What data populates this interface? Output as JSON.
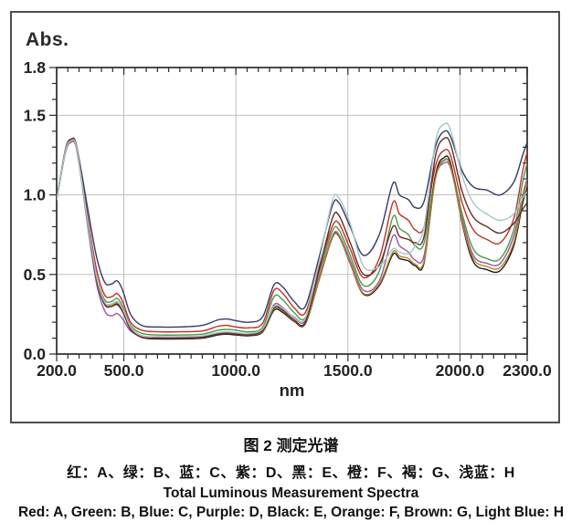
{
  "figure": {
    "y_axis_title": "Abs.",
    "x_axis_label": "nm"
  },
  "caption": {
    "line1": "图 2  测定光谱",
    "line2": "红：A、绿：B、蓝：C、紫：D、黑：E、橙：F、褐：G、浅蓝：H",
    "line3": "Total Luminous Measurement Spectra",
    "line4": "Red: A, Green: B, Blue: C, Purple: D, Black: E, Orange: F, Brown: G, Light Blue: H"
  },
  "chart_data": {
    "type": "line",
    "title": "图 2 测定光谱 (Total Luminous Measurement Spectra)",
    "xlabel": "nm",
    "ylabel": "Abs.",
    "xlim": [
      200,
      2300
    ],
    "ylim": [
      0,
      1.8
    ],
    "grid": true,
    "grid_x": [
      500,
      1000,
      1500,
      2000
    ],
    "grid_y": [
      0.5,
      1.0,
      1.5
    ],
    "x_minor_step": 50,
    "y_minor_step": 0.1,
    "xticks": [
      {
        "v": 200,
        "label": "200.0"
      },
      {
        "v": 500,
        "label": "500.0"
      },
      {
        "v": 1000,
        "label": "1000.0"
      },
      {
        "v": 1500,
        "label": "1500.0"
      },
      {
        "v": 2000,
        "label": "2000.0"
      },
      {
        "v": 2300,
        "label": "2300.0"
      }
    ],
    "yticks": [
      {
        "v": 0.0,
        "label": "0.0"
      },
      {
        "v": 0.5,
        "label": "0.5"
      },
      {
        "v": 1.0,
        "label": "1.0"
      },
      {
        "v": 1.5,
        "label": "1.5"
      },
      {
        "v": 1.8,
        "label": "1.8"
      }
    ],
    "x": [
      200,
      240,
      265,
      285,
      310,
      345,
      380,
      415,
      445,
      470,
      495,
      530,
      580,
      650,
      750,
      850,
      920,
      960,
      1000,
      1060,
      1120,
      1170,
      1210,
      1260,
      1310,
      1370,
      1430,
      1460,
      1510,
      1570,
      1640,
      1700,
      1730,
      1770,
      1800,
      1840,
      1890,
      1930,
      1960,
      2010,
      2060,
      2120,
      2180,
      2240,
      2280,
      2300
    ],
    "series": [
      {
        "name": "A",
        "color_name": "red",
        "color": "#c03028",
        "values": [
          0.97,
          1.29,
          1.35,
          1.33,
          1.13,
          0.8,
          0.52,
          0.37,
          0.36,
          0.38,
          0.33,
          0.2,
          0.15,
          0.14,
          0.14,
          0.145,
          0.175,
          0.18,
          0.17,
          0.165,
          0.195,
          0.4,
          0.38,
          0.29,
          0.26,
          0.54,
          0.8,
          0.82,
          0.66,
          0.48,
          0.6,
          0.95,
          0.88,
          0.84,
          0.78,
          0.8,
          1.18,
          1.28,
          1.24,
          0.95,
          0.78,
          0.72,
          0.7,
          0.85,
          1.15,
          1.27
        ]
      },
      {
        "name": "B",
        "color_name": "green",
        "color": "#4a9a4a",
        "values": [
          0.97,
          1.28,
          1.34,
          1.32,
          1.12,
          0.77,
          0.48,
          0.34,
          0.33,
          0.35,
          0.3,
          0.18,
          0.13,
          0.12,
          0.12,
          0.125,
          0.15,
          0.155,
          0.15,
          0.14,
          0.17,
          0.36,
          0.34,
          0.26,
          0.23,
          0.51,
          0.77,
          0.78,
          0.62,
          0.43,
          0.52,
          0.86,
          0.79,
          0.75,
          0.68,
          0.7,
          1.12,
          1.22,
          1.18,
          0.88,
          0.66,
          0.6,
          0.6,
          0.78,
          1.08,
          1.2
        ]
      },
      {
        "name": "C",
        "color_name": "blue",
        "color": "#333c64",
        "values": [
          0.97,
          1.28,
          1.34,
          1.32,
          1.15,
          0.86,
          0.6,
          0.45,
          0.44,
          0.46,
          0.4,
          0.25,
          0.18,
          0.17,
          0.17,
          0.18,
          0.215,
          0.22,
          0.21,
          0.2,
          0.235,
          0.435,
          0.42,
          0.33,
          0.3,
          0.6,
          0.93,
          0.95,
          0.8,
          0.62,
          0.75,
          1.07,
          1.0,
          0.97,
          0.92,
          0.96,
          1.3,
          1.4,
          1.36,
          1.15,
          1.05,
          1.03,
          1.0,
          1.08,
          1.25,
          1.33
        ]
      },
      {
        "name": "D",
        "color_name": "purple",
        "color": "#99589d",
        "values": [
          0.97,
          1.27,
          1.33,
          1.31,
          1.1,
          0.74,
          0.43,
          0.27,
          0.24,
          0.255,
          0.22,
          0.145,
          0.115,
          0.105,
          0.105,
          0.11,
          0.13,
          0.135,
          0.13,
          0.125,
          0.15,
          0.31,
          0.29,
          0.23,
          0.21,
          0.48,
          0.74,
          0.75,
          0.59,
          0.4,
          0.46,
          0.74,
          0.68,
          0.64,
          0.59,
          0.62,
          1.1,
          1.2,
          1.16,
          0.85,
          0.62,
          0.57,
          0.57,
          0.74,
          1.0,
          1.1
        ]
      },
      {
        "name": "E",
        "color_name": "black",
        "color": "#1e1a1a",
        "values": [
          0.97,
          1.28,
          1.34,
          1.32,
          1.11,
          0.76,
          0.46,
          0.31,
          0.3,
          0.315,
          0.27,
          0.16,
          0.105,
          0.095,
          0.095,
          0.1,
          0.12,
          0.125,
          0.12,
          0.115,
          0.14,
          0.275,
          0.26,
          0.205,
          0.19,
          0.46,
          0.73,
          0.74,
          0.57,
          0.375,
          0.43,
          0.625,
          0.6,
          0.585,
          0.555,
          0.575,
          1.12,
          1.235,
          1.19,
          0.82,
          0.58,
          0.53,
          0.525,
          0.68,
          0.95,
          1.04
        ]
      },
      {
        "name": "F",
        "color_name": "orange",
        "color": "#b5832f",
        "values": [
          0.97,
          1.28,
          1.34,
          1.32,
          1.11,
          0.76,
          0.47,
          0.32,
          0.31,
          0.325,
          0.28,
          0.165,
          0.11,
          0.1,
          0.1,
          0.105,
          0.125,
          0.13,
          0.125,
          0.12,
          0.145,
          0.285,
          0.27,
          0.21,
          0.195,
          0.465,
          0.735,
          0.745,
          0.575,
          0.38,
          0.44,
          0.64,
          0.615,
          0.6,
          0.565,
          0.585,
          1.1,
          1.215,
          1.17,
          0.83,
          0.6,
          0.55,
          0.545,
          0.7,
          0.98,
          1.07
        ]
      },
      {
        "name": "G",
        "color_name": "brown",
        "color": "#652c26",
        "values": [
          0.97,
          1.29,
          1.35,
          1.33,
          1.12,
          0.77,
          0.46,
          0.31,
          0.3,
          0.31,
          0.265,
          0.155,
          0.105,
          0.1,
          0.1,
          0.105,
          0.125,
          0.13,
          0.125,
          0.12,
          0.15,
          0.29,
          0.275,
          0.215,
          0.2,
          0.52,
          0.85,
          0.87,
          0.7,
          0.5,
          0.56,
          0.8,
          0.74,
          0.72,
          0.7,
          0.74,
          1.24,
          1.355,
          1.31,
          1.02,
          0.86,
          0.8,
          0.76,
          0.82,
          0.91,
          0.95
        ]
      },
      {
        "name": "H",
        "color_name": "light blue",
        "color": "#a4c7c9",
        "values": [
          0.97,
          1.28,
          1.34,
          1.32,
          1.11,
          0.77,
          0.475,
          0.325,
          0.315,
          0.33,
          0.285,
          0.17,
          0.115,
          0.11,
          0.11,
          0.115,
          0.135,
          0.14,
          0.135,
          0.13,
          0.16,
          0.3,
          0.285,
          0.235,
          0.225,
          0.57,
          0.96,
          0.98,
          0.82,
          0.55,
          0.55,
          0.66,
          0.64,
          0.63,
          0.68,
          0.8,
          1.33,
          1.445,
          1.4,
          1.12,
          0.95,
          0.88,
          0.84,
          0.88,
          0.98,
          1.02
        ]
      }
    ]
  }
}
